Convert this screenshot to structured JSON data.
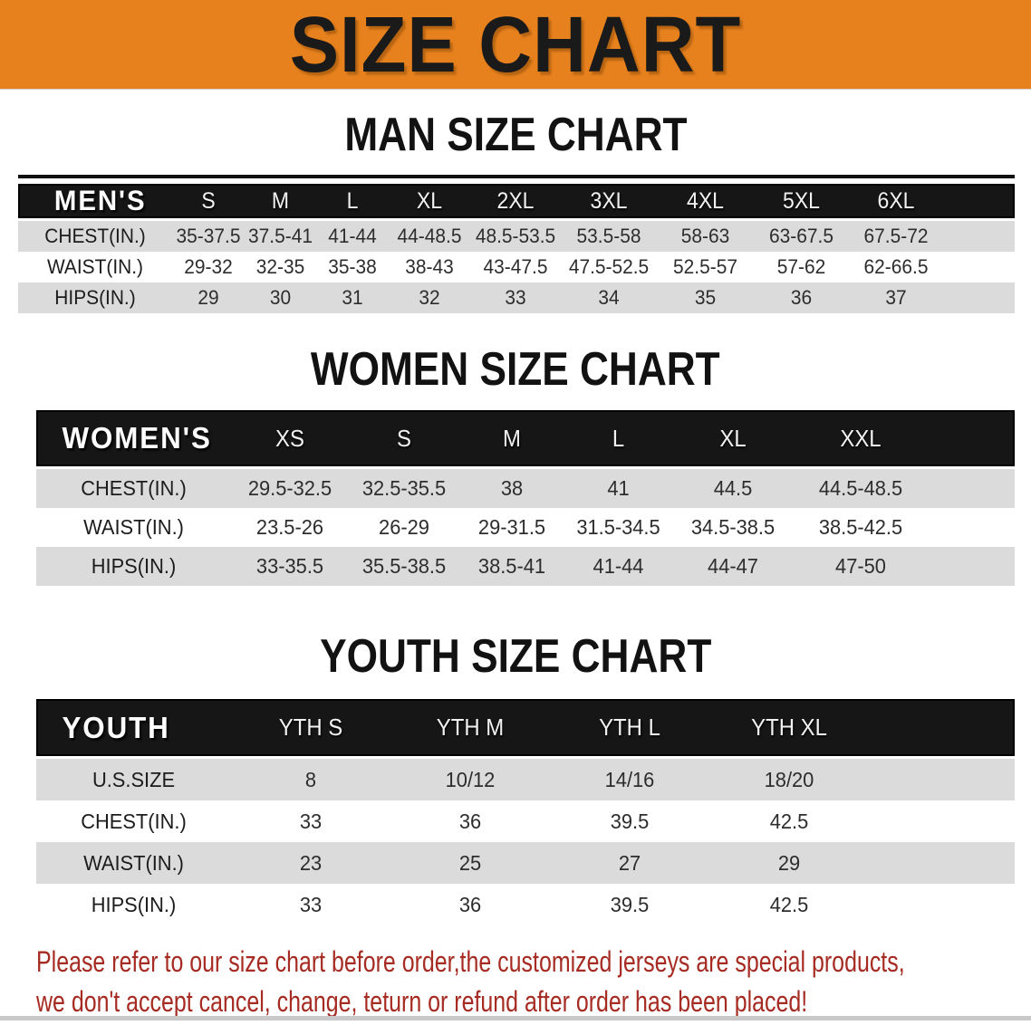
{
  "banner": {
    "title": "SIZE CHART",
    "bg_color": "#E7811D"
  },
  "colors": {
    "banner_orange": "#E7811D",
    "header_black": "#161616",
    "row_gray": "#DBDBDB",
    "disclaimer_red": "#A62B22"
  },
  "sections": [
    {
      "title": "MAN SIZE CHART",
      "table": {
        "header_label": "MEN'S",
        "columns": [
          "S",
          "M",
          "L",
          "XL",
          "2XL",
          "3XL",
          "4XL",
          "5XL",
          "6XL"
        ],
        "rows": [
          {
            "label": "CHEST(IN.)",
            "values": [
              "35-37.5",
              "37.5-41",
              "41-44",
              "44-48.5",
              "48.5-53.5",
              "53.5-58",
              "58-63",
              "63-67.5",
              "67.5-72"
            ]
          },
          {
            "label": "WAIST(IN.)",
            "values": [
              "29-32",
              "32-35",
              "35-38",
              "38-43",
              "43-47.5",
              "47.5-52.5",
              "52.5-57",
              "57-62",
              "62-66.5"
            ]
          },
          {
            "label": "HIPS(IN.)",
            "values": [
              "29",
              "30",
              "31",
              "32",
              "33",
              "34",
              "35",
              "36",
              "37"
            ]
          }
        ]
      }
    },
    {
      "title": "WOMEN SIZE CHART",
      "table": {
        "header_label": "WOMEN'S",
        "columns": [
          "XS",
          "S",
          "M",
          "L",
          "XL",
          "XXL"
        ],
        "rows": [
          {
            "label": "CHEST(IN.)",
            "values": [
              "29.5-32.5",
              "32.5-35.5",
              "38",
              "41",
              "44.5",
              "44.5-48.5"
            ]
          },
          {
            "label": "WAIST(IN.)",
            "values": [
              "23.5-26",
              "26-29",
              "29-31.5",
              "31.5-34.5",
              "34.5-38.5",
              "38.5-42.5"
            ]
          },
          {
            "label": "HIPS(IN.)",
            "values": [
              "33-35.5",
              "35.5-38.5",
              "38.5-41",
              "41-44",
              "44-47",
              "47-50"
            ]
          }
        ]
      }
    },
    {
      "title": "YOUTH SIZE CHART",
      "table": {
        "header_label": "YOUTH",
        "columns": [
          "YTH S",
          "YTH M",
          "YTH L",
          "YTH XL"
        ],
        "rows": [
          {
            "label": "U.S.SIZE",
            "values": [
              "8",
              "10/12",
              "14/16",
              "18/20"
            ]
          },
          {
            "label": "CHEST(IN.)",
            "values": [
              "33",
              "36",
              "39.5",
              "42.5"
            ]
          },
          {
            "label": "WAIST(IN.)",
            "values": [
              "23",
              "25",
              "27",
              "29"
            ]
          },
          {
            "label": "HIPS(IN.)",
            "values": [
              "33",
              "36",
              "39.5",
              "42.5"
            ]
          }
        ]
      }
    }
  ],
  "disclaimer": {
    "line1": "Please refer to our size chart before order,the customized jerseys are special products,",
    "line2": "we don't accept cancel, change, teturn or refund after order has been placed!"
  }
}
